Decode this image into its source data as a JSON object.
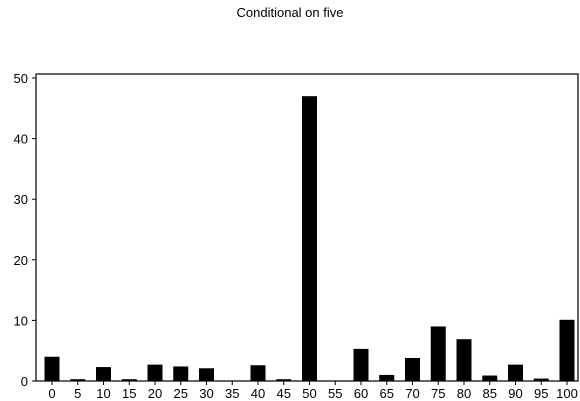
{
  "chart_data": {
    "type": "bar",
    "title": "Conditional on five",
    "xlabel": "",
    "ylabel": "",
    "categories": [
      "0",
      "5",
      "10",
      "15",
      "20",
      "25",
      "30",
      "35",
      "40",
      "45",
      "50",
      "55",
      "60",
      "65",
      "70",
      "75",
      "80",
      "85",
      "90",
      "95",
      "100"
    ],
    "values": [
      4,
      0.3,
      2.3,
      0.3,
      2.7,
      2.4,
      2.1,
      0,
      2.6,
      0.3,
      47,
      0,
      5.3,
      1.0,
      3.8,
      9.0,
      6.9,
      0.9,
      2.7,
      0.4,
      10.1
    ],
    "ylim": [
      0,
      50
    ],
    "yticks": [
      0,
      10,
      20,
      30,
      40,
      50
    ],
    "grid": false,
    "bar_color": "#000000"
  }
}
